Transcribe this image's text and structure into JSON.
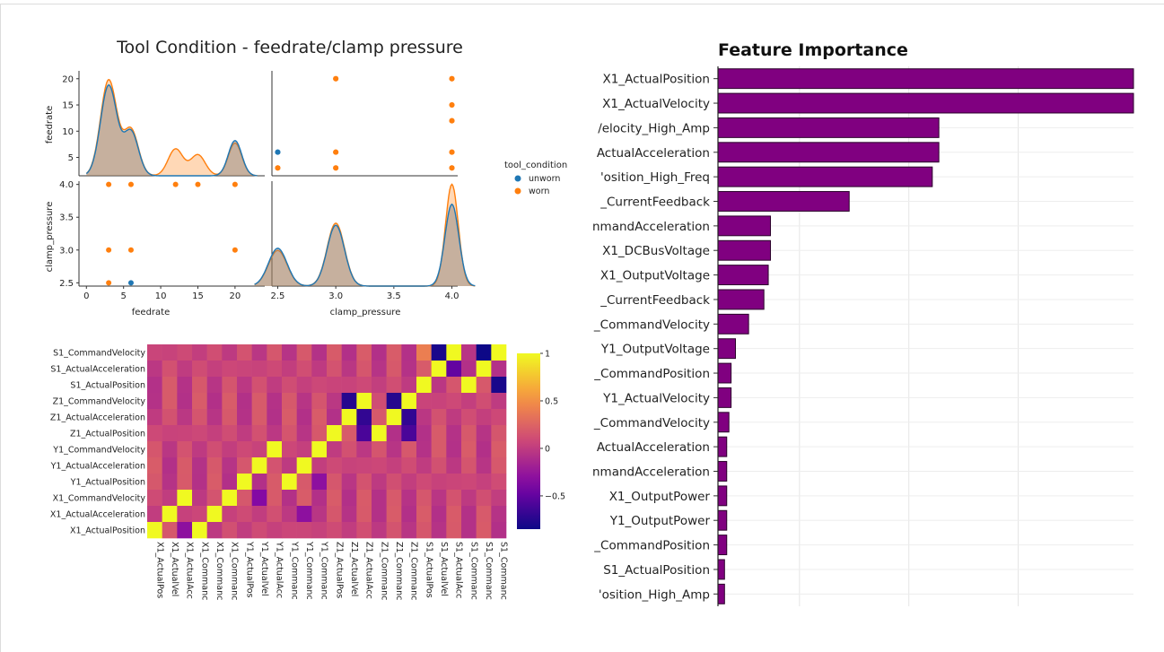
{
  "pairplot": {
    "title": "Tool Condition - feedrate/clamp pressure",
    "var_labels": [
      "feedrate",
      "clamp_pressure"
    ],
    "legend": {
      "title": "tool_condition",
      "entries": [
        {
          "label": "unworn",
          "color": "#1f77b4"
        },
        {
          "label": "worn",
          "color": "#ff7f0e"
        }
      ]
    }
  },
  "chart_data": [
    {
      "type": "scatter",
      "title": "Tool Condition - feedrate/clamp pressure",
      "variables": [
        "feedrate",
        "clamp_pressure"
      ],
      "feedrate_ticks": [
        0,
        5,
        10,
        15,
        20
      ],
      "feedrate_yticks": [
        5,
        10,
        15,
        20
      ],
      "clamp_pressure_ticks": [
        2.5,
        3.0,
        3.5,
        4.0
      ],
      "feedrate_range": [
        -1,
        24
      ],
      "clamp_pressure_range": [
        2.45,
        4.05
      ],
      "series": [
        {
          "name": "unworn",
          "color": "#1f77b4",
          "points": [
            {
              "feedrate": 6,
              "clamp_pressure": 2.5
            }
          ]
        },
        {
          "name": "worn",
          "color": "#ff7f0e",
          "points": [
            {
              "feedrate": 3,
              "clamp_pressure": 4.0
            },
            {
              "feedrate": 6,
              "clamp_pressure": 4.0
            },
            {
              "feedrate": 12,
              "clamp_pressure": 4.0
            },
            {
              "feedrate": 15,
              "clamp_pressure": 4.0
            },
            {
              "feedrate": 20,
              "clamp_pressure": 4.0
            },
            {
              "feedrate": 3,
              "clamp_pressure": 3.0
            },
            {
              "feedrate": 6,
              "clamp_pressure": 3.0
            },
            {
              "feedrate": 20,
              "clamp_pressure": 3.0
            },
            {
              "feedrate": 3,
              "clamp_pressure": 2.5
            }
          ]
        }
      ],
      "kde_feedrate": {
        "unworn": {
          "peaks": [
            {
              "x": 3,
              "h": 18.5,
              "w": 1.1
            },
            {
              "x": 6,
              "h": 9.0,
              "w": 1.0
            },
            {
              "x": 20,
              "h": 7.2,
              "w": 0.9
            }
          ]
        },
        "worn": {
          "peaks": [
            {
              "x": 3,
              "h": 19.6,
              "w": 1.1
            },
            {
              "x": 6,
              "h": 9.4,
              "w": 1.0
            },
            {
              "x": 12,
              "h": 5.5,
              "w": 1.0
            },
            {
              "x": 15,
              "h": 4.3,
              "w": 1.0
            },
            {
              "x": 20,
              "h": 6.7,
              "w": 0.9
            }
          ]
        }
      },
      "kde_clamp": {
        "unworn": {
          "peaks": [
            {
              "x": 2.5,
              "h": 0.36,
              "w": 0.08
            },
            {
              "x": 3.0,
              "h": 0.58,
              "w": 0.075
            },
            {
              "x": 4.0,
              "h": 0.78,
              "w": 0.06
            }
          ]
        },
        "worn": {
          "peaks": [
            {
              "x": 2.5,
              "h": 0.34,
              "w": 0.08
            },
            {
              "x": 3.0,
              "h": 0.6,
              "w": 0.075
            },
            {
              "x": 4.0,
              "h": 0.97,
              "w": 0.055
            }
          ]
        }
      }
    },
    {
      "type": "heatmap",
      "y_labels": [
        "S1_CommandVelocity",
        "S1_ActualAcceleration",
        "S1_ActualPosition",
        "Z1_CommandVelocity",
        "Z1_ActualAcceleration",
        "Z1_ActualPosition",
        "Y1_CommandVelocity",
        "Y1_ActualAcceleration",
        "Y1_ActualPosition",
        "X1_CommandVelocity",
        "X1_ActualAcceleration",
        "X1_ActualPosition"
      ],
      "x_labels": [
        "X1_ActualPos",
        "X1_ActualVel",
        "X1_ActualAcc",
        "X1_Commanc",
        "X1_Commanc",
        "X1_Commanc",
        "Y1_ActualPos",
        "Y1_ActualVel",
        "Y1_ActualAcc",
        "Y1_Commanc",
        "Y1_Commanc",
        "Y1_Commanc",
        "Z1_ActualPos",
        "Z1_ActualVel",
        "Z1_ActualAcc",
        "Z1_Commanc",
        "Z1_Commanc",
        "Z1_Commanc",
        "S1_ActualPos",
        "S1_ActualVel",
        "S1_ActualAcc",
        "S1_Commanc",
        "S1_Commanc",
        "S1_Commanc"
      ],
      "colorbar_ticks": [
        "1",
        "0.5",
        "0",
        "−0.5"
      ],
      "colorbar_values": [
        1,
        0.5,
        0,
        -0.5
      ],
      "vmin": -0.85,
      "vmax": 1,
      "strong": [
        {
          "r": 0,
          "c": 20,
          "v": 1
        },
        {
          "r": 0,
          "c": 23,
          "v": 1
        },
        {
          "r": 0,
          "c": 19,
          "v": -0.8
        },
        {
          "r": 0,
          "c": 22,
          "v": -0.85
        },
        {
          "r": 0,
          "c": 18,
          "v": 0.4
        },
        {
          "r": 1,
          "c": 19,
          "v": 1
        },
        {
          "r": 1,
          "c": 22,
          "v": 1
        },
        {
          "r": 1,
          "c": 20,
          "v": -0.5
        },
        {
          "r": 2,
          "c": 18,
          "v": 1
        },
        {
          "r": 2,
          "c": 21,
          "v": 1
        },
        {
          "r": 2,
          "c": 23,
          "v": -0.8
        },
        {
          "r": 3,
          "c": 14,
          "v": 1
        },
        {
          "r": 3,
          "c": 17,
          "v": 1
        },
        {
          "r": 3,
          "c": 13,
          "v": -0.75
        },
        {
          "r": 3,
          "c": 16,
          "v": -0.75
        },
        {
          "r": 4,
          "c": 13,
          "v": 1
        },
        {
          "r": 4,
          "c": 16,
          "v": 1
        },
        {
          "r": 4,
          "c": 14,
          "v": -0.7
        },
        {
          "r": 4,
          "c": 17,
          "v": -0.7
        },
        {
          "r": 5,
          "c": 12,
          "v": 1
        },
        {
          "r": 5,
          "c": 15,
          "v": 1
        },
        {
          "r": 5,
          "c": 14,
          "v": -0.6
        },
        {
          "r": 5,
          "c": 17,
          "v": -0.6
        },
        {
          "r": 6,
          "c": 8,
          "v": 1
        },
        {
          "r": 6,
          "c": 11,
          "v": 1
        },
        {
          "r": 7,
          "c": 7,
          "v": 1
        },
        {
          "r": 7,
          "c": 10,
          "v": 1
        },
        {
          "r": 8,
          "c": 6,
          "v": 1
        },
        {
          "r": 8,
          "c": 9,
          "v": 1
        },
        {
          "r": 8,
          "c": 11,
          "v": -0.3
        },
        {
          "r": 9,
          "c": 2,
          "v": 1
        },
        {
          "r": 9,
          "c": 5,
          "v": 1
        },
        {
          "r": 9,
          "c": 7,
          "v": -0.35
        },
        {
          "r": 10,
          "c": 1,
          "v": 1
        },
        {
          "r": 10,
          "c": 4,
          "v": 1
        },
        {
          "r": 10,
          "c": 10,
          "v": -0.3
        },
        {
          "r": 11,
          "c": 0,
          "v": 1
        },
        {
          "r": 11,
          "c": 3,
          "v": 1
        },
        {
          "r": 11,
          "c": 2,
          "v": -0.3
        }
      ]
    },
    {
      "type": "bar",
      "orientation": "horizontal",
      "title": "Feature Importance",
      "categories": [
        "X1_ActualPosition",
        "X1_ActualVelocity",
        "/elocity_High_Amp",
        "ActualAcceleration",
        "'osition_High_Freq",
        "_CurrentFeedback",
        "nmandAcceleration",
        "X1_DCBusVoltage",
        "X1_OutputVoltage",
        "_CurrentFeedback",
        "_CommandVelocity",
        "Y1_OutputVoltage",
        "_CommandPosition",
        "Y1_ActualVelocity",
        "_CommandVelocity",
        "ActualAcceleration",
        "nmandAcceleration",
        "X1_OutputPower",
        "Y1_OutputPower",
        "_CommandPosition",
        "S1_ActualPosition",
        "'osition_High_Amp"
      ],
      "values": [
        0.19,
        0.19,
        0.101,
        0.101,
        0.098,
        0.06,
        0.024,
        0.024,
        0.023,
        0.021,
        0.014,
        0.008,
        0.006,
        0.006,
        0.005,
        0.004,
        0.004,
        0.004,
        0.004,
        0.004,
        0.003,
        0.003
      ],
      "xlim": [
        0,
        0.19
      ],
      "bar_color": "#800080"
    }
  ]
}
